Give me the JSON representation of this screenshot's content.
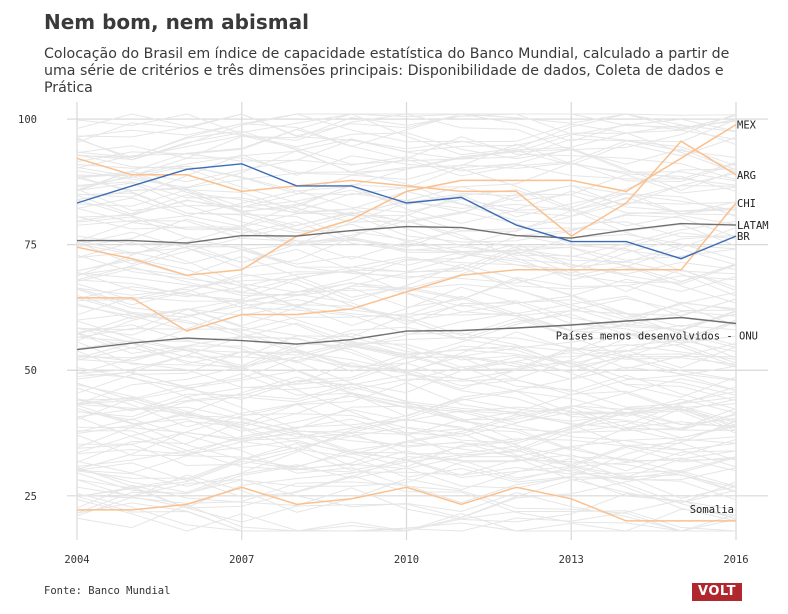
{
  "title": "Nem bom, nem abismal",
  "subtitle": "Colocação do Brasil em índice de capacidade estatística do Banco Mundial, calculado a partir de uma série de critérios e três dimensões principais: Disponibilidade de dados, Coleta de dados e Prática",
  "source": "Fonte: Banco Mundial",
  "logo": "VOLT",
  "colors": {
    "highlight": "#fbc08d",
    "brazil": "#3b6cb5",
    "aggregate": "#707070",
    "background_lines": "#e6e6e6",
    "grid": "#d8d8d8"
  },
  "chart_data": {
    "type": "line",
    "title": "Nem bom, nem abismal",
    "xlabel": "",
    "ylabel": "",
    "xlim": [
      2004,
      2016
    ],
    "ylim": [
      17,
      103
    ],
    "x_ticks": [
      2004,
      2007,
      2010,
      2013,
      2016
    ],
    "y_ticks": [
      25,
      50,
      75,
      100
    ],
    "x": [
      2004,
      2005,
      2006,
      2007,
      2008,
      2009,
      2010,
      2011,
      2012,
      2013,
      2014,
      2015,
      2016
    ],
    "grid": true,
    "series": [
      {
        "name": "MEX",
        "role": "highlight",
        "values": [
          74.5,
          72.2,
          68.9,
          70.0,
          76.7,
          80.0,
          85.6,
          87.8,
          87.8,
          87.8,
          85.6,
          92.2,
          98.9
        ]
      },
      {
        "name": "ARG",
        "role": "highlight",
        "values": [
          92.2,
          88.9,
          88.9,
          85.6,
          86.7,
          87.8,
          86.7,
          85.6,
          85.6,
          76.7,
          83.3,
          95.6,
          88.9
        ]
      },
      {
        "name": "CHI",
        "role": "highlight",
        "values": [
          64.4,
          64.4,
          57.8,
          61.1,
          61.1,
          62.2,
          65.6,
          68.9,
          70.0,
          70.0,
          70.0,
          70.0,
          83.3
        ]
      },
      {
        "name": "LATAM",
        "role": "aggregate",
        "values": [
          75.8,
          75.8,
          75.3,
          76.8,
          76.7,
          77.8,
          78.6,
          78.4,
          76.8,
          76.3,
          77.9,
          79.2,
          78.9
        ]
      },
      {
        "name": "BR",
        "role": "brazil",
        "values": [
          83.3,
          86.7,
          90.0,
          91.1,
          86.7,
          86.7,
          83.3,
          84.4,
          78.9,
          75.6,
          75.6,
          72.2,
          76.7
        ]
      },
      {
        "name": "Países menos desenvolvidos - ONU",
        "role": "aggregate",
        "values": [
          54.1,
          55.4,
          56.4,
          55.9,
          55.2,
          56.1,
          57.8,
          57.9,
          58.4,
          59.0,
          59.8,
          60.5,
          59.3
        ]
      },
      {
        "name": "Somalia",
        "role": "highlight",
        "values": [
          22.2,
          22.2,
          23.3,
          26.7,
          23.3,
          24.4,
          26.7,
          23.3,
          26.7,
          24.4,
          20.0,
          20.0,
          20.0
        ]
      }
    ]
  }
}
